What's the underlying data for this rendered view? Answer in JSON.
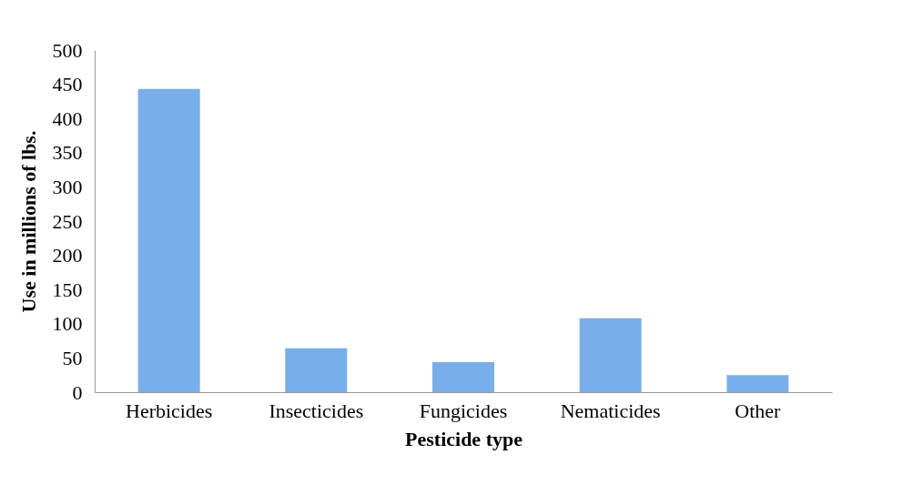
{
  "chart_data": {
    "type": "bar",
    "xlabel": "Pesticide type",
    "ylabel": "Use in millions of lbs.",
    "categories": [
      "Herbicides",
      "Insecticides",
      "Fungicides",
      "Nematicides",
      "Other"
    ],
    "values": [
      443,
      64,
      44,
      108,
      25
    ],
    "color": "#7aaeea",
    "ylim": [
      0,
      500
    ],
    "yticks": [
      0,
      50,
      100,
      150,
      200,
      250,
      300,
      350,
      400,
      450,
      500
    ],
    "grid": false
  }
}
